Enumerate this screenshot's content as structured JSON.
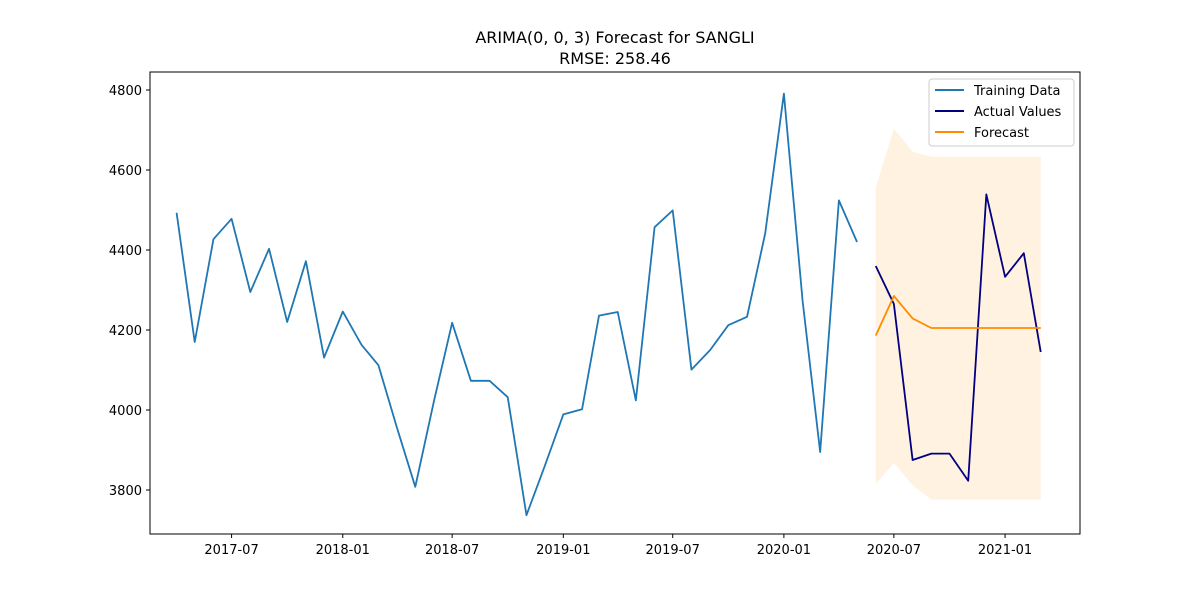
{
  "chart_data": {
    "type": "line",
    "title": "ARIMA(0, 0, 3) Forecast for SANGLI",
    "subtitle": "RMSE: 258.46",
    "xlabel": "",
    "ylabel": "",
    "xlim": [
      "2017-02-16",
      "2021-05-05"
    ],
    "ylim": [
      3690,
      4845
    ],
    "x_ticks": [
      {
        "value": "2017-07-01",
        "label": "2017-07"
      },
      {
        "value": "2018-01-01",
        "label": "2018-01"
      },
      {
        "value": "2018-07-01",
        "label": "2018-07"
      },
      {
        "value": "2019-01-01",
        "label": "2019-01"
      },
      {
        "value": "2019-07-01",
        "label": "2019-07"
      },
      {
        "value": "2020-01-01",
        "label": "2020-01"
      },
      {
        "value": "2020-07-01",
        "label": "2020-07"
      },
      {
        "value": "2021-01-01",
        "label": "2021-01"
      }
    ],
    "y_ticks": [
      3800,
      4000,
      4200,
      4400,
      4600,
      4800
    ],
    "grid": false,
    "legend_position": "top-right",
    "series": [
      {
        "name": "Training Data",
        "color": "#1f77b4",
        "points": [
          [
            "2017-04-01",
            4493
          ],
          [
            "2017-05-01",
            4170
          ],
          [
            "2017-06-01",
            4427
          ],
          [
            "2017-07-01",
            4478
          ],
          [
            "2017-08-01",
            4295
          ],
          [
            "2017-09-01",
            4403
          ],
          [
            "2017-10-01",
            4220
          ],
          [
            "2017-11-01",
            4372
          ],
          [
            "2017-12-01",
            4131
          ],
          [
            "2018-01-01",
            4246
          ],
          [
            "2018-02-01",
            4163
          ],
          [
            "2018-03-01",
            4112
          ],
          [
            "2018-04-01",
            3954
          ],
          [
            "2018-05-01",
            3808
          ],
          [
            "2018-06-01",
            4023
          ],
          [
            "2018-07-01",
            4218
          ],
          [
            "2018-08-01",
            4073
          ],
          [
            "2018-09-01",
            4073
          ],
          [
            "2018-10-01",
            4032
          ],
          [
            "2018-11-01",
            3737
          ],
          [
            "2018-12-01",
            3859
          ],
          [
            "2019-01-01",
            3989
          ],
          [
            "2019-02-01",
            4002
          ],
          [
            "2019-03-01",
            4236
          ],
          [
            "2019-04-01",
            4245
          ],
          [
            "2019-05-01",
            4024
          ],
          [
            "2019-06-01",
            4457
          ],
          [
            "2019-07-01",
            4499
          ],
          [
            "2019-08-01",
            4101
          ],
          [
            "2019-09-01",
            4150
          ],
          [
            "2019-10-01",
            4212
          ],
          [
            "2019-11-01",
            4233
          ],
          [
            "2019-12-01",
            4441
          ],
          [
            "2020-01-01",
            4791
          ],
          [
            "2020-02-01",
            4272
          ],
          [
            "2020-03-01",
            3895
          ],
          [
            "2020-04-01",
            4524
          ],
          [
            "2020-05-01",
            4420
          ]
        ]
      },
      {
        "name": "Actual Values",
        "color": "#000080",
        "points": [
          [
            "2020-06-01",
            4360
          ],
          [
            "2020-07-01",
            4265
          ],
          [
            "2020-08-01",
            3875
          ],
          [
            "2020-09-01",
            3891
          ],
          [
            "2020-10-01",
            3891
          ],
          [
            "2020-11-01",
            3823
          ],
          [
            "2020-12-01",
            4539
          ],
          [
            "2021-01-01",
            4333
          ],
          [
            "2021-02-01",
            4392
          ],
          [
            "2021-03-01",
            4145
          ]
        ]
      },
      {
        "name": "Forecast",
        "color": "#ff8c00",
        "points": [
          [
            "2020-06-01",
            4186
          ],
          [
            "2020-07-01",
            4285
          ],
          [
            "2020-08-01",
            4229
          ],
          [
            "2020-09-01",
            4205
          ],
          [
            "2020-10-01",
            4205
          ],
          [
            "2020-11-01",
            4205
          ],
          [
            "2020-12-01",
            4205
          ],
          [
            "2021-01-01",
            4205
          ],
          [
            "2021-02-01",
            4205
          ],
          [
            "2021-03-01",
            4205
          ]
        ]
      }
    ],
    "confidence_interval": {
      "color": "#ffe8c8",
      "points": [
        [
          "2020-06-01",
          3815,
          4557
        ],
        [
          "2020-07-01",
          3868,
          4703
        ],
        [
          "2020-08-01",
          3812,
          4646
        ],
        [
          "2020-09-01",
          3776,
          4633
        ],
        [
          "2020-10-01",
          3776,
          4633
        ],
        [
          "2020-11-01",
          3776,
          4633
        ],
        [
          "2020-12-01",
          3776,
          4633
        ],
        [
          "2021-01-01",
          3776,
          4633
        ],
        [
          "2021-02-01",
          3776,
          4633
        ],
        [
          "2021-03-01",
          3776,
          4633
        ]
      ]
    }
  }
}
